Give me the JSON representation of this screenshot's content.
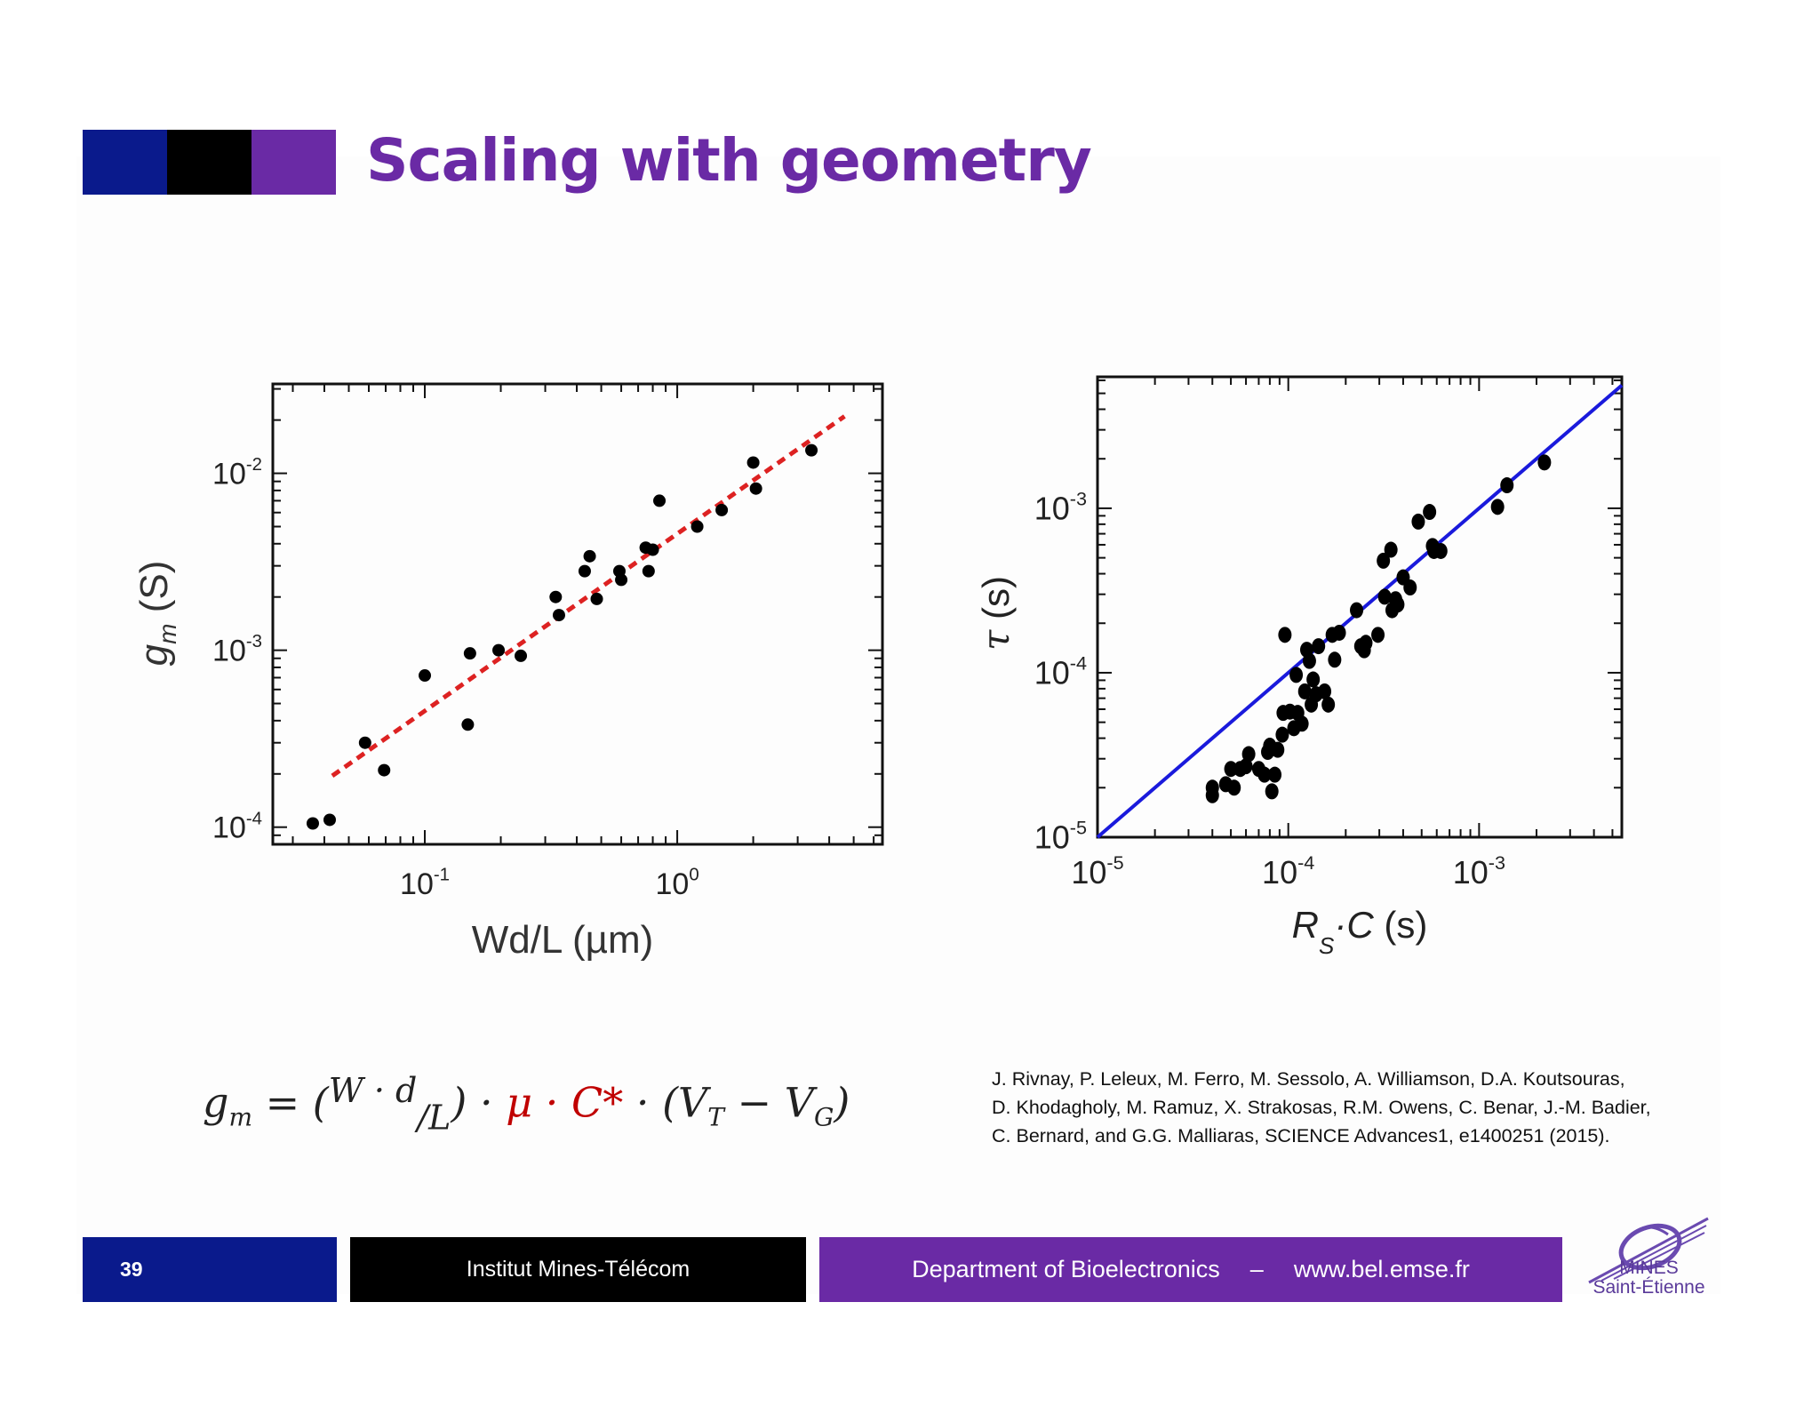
{
  "slide": {
    "title": "Scaling with geometry",
    "title_colors": [
      "#0a1a8c",
      "#000000",
      "#6a2aa5"
    ],
    "formula": {
      "lhs": "g",
      "lhs_sub": "m",
      "eq": " = (",
      "w_d": "W · d",
      "over_l": "/L",
      "close": ") · ",
      "mu_c": "μ · C*",
      "tail": " · (V",
      "tail_sub_t": "T",
      "minus": " − V",
      "tail_sub_g": "G",
      "end": ")"
    },
    "reference": "J. Rivnay, P. Leleux, M. Ferro, M. Sessolo, A. Williamson, D.A. Koutsouras,\nD. Khodagholy, M. Ramuz, X. Strakosas, R.M. Owens, C. Benar, J.-M. Badier,\nC. Bernard, and G.G. Malliaras, SCIENCE Advances1, e1400251 (2015).",
    "footer": {
      "page_number": "39",
      "institute": "Institut Mines-Télécom",
      "department": "Department of Bioelectronics",
      "dash": "–",
      "url": "www.bel.emse.fr",
      "colors": [
        "#0a1a8c",
        "#000000",
        "#6a2aa5"
      ]
    },
    "logo": {
      "icon": "mines-logo-icon",
      "line1": "MINES",
      "line2": "Saint-Étienne"
    }
  },
  "chart_data": [
    {
      "type": "scatter",
      "title": "",
      "xlabel": "Wd/L (µm)",
      "ylabel": "g_m (S)",
      "ylabel_main": "g",
      "ylabel_sub": "m",
      "ylabel_unit": "(S)",
      "xscale": "log",
      "yscale": "log",
      "xlim": [
        0.025,
        6.5
      ],
      "ylim": [
        8e-05,
        0.032
      ],
      "xticks": [
        {
          "exp": "-1",
          "v": 0.1
        },
        {
          "exp": "0",
          "v": 1
        }
      ],
      "yticks": [
        {
          "exp": "-4",
          "v": 0.0001
        },
        {
          "exp": "-3",
          "v": 0.001
        },
        {
          "exp": "-2",
          "v": 0.01
        }
      ],
      "tick_base": "10",
      "marker_color": "#000000",
      "points": [
        [
          0.036,
          0.000105
        ],
        [
          0.042,
          0.00011
        ],
        [
          0.058,
          0.0003
        ],
        [
          0.069,
          0.00021
        ],
        [
          0.1,
          0.00072
        ],
        [
          0.148,
          0.00038
        ],
        [
          0.151,
          0.00096
        ],
        [
          0.196,
          0.001
        ],
        [
          0.24,
          0.00093
        ],
        [
          0.33,
          0.002
        ],
        [
          0.34,
          0.00158
        ],
        [
          0.43,
          0.0028
        ],
        [
          0.45,
          0.0034
        ],
        [
          0.48,
          0.00195
        ],
        [
          0.59,
          0.0028
        ],
        [
          0.6,
          0.0025
        ],
        [
          0.75,
          0.0038
        ],
        [
          0.77,
          0.0028
        ],
        [
          0.8,
          0.0037
        ],
        [
          0.85,
          0.007
        ],
        [
          1.2,
          0.005
        ],
        [
          1.5,
          0.0062
        ],
        [
          2.0,
          0.0115
        ],
        [
          2.05,
          0.0082
        ],
        [
          3.4,
          0.0135
        ]
      ],
      "fit_line": {
        "x": [
          0.043,
          4.6
        ],
        "y": [
          0.000195,
          0.021
        ],
        "color": "#dd2222",
        "style": "dashed"
      }
    },
    {
      "type": "scatter",
      "title": "",
      "xlabel": "Rs·C (s)",
      "ylabel": "τ (s)",
      "xlabel_main": "R",
      "xlabel_sub": "S",
      "xlabel_rest": "·C",
      "xlabel_unit": "(s)",
      "ylabel_main": "τ",
      "ylabel_unit": "(s)",
      "xscale": "log",
      "yscale": "log",
      "xlim": [
        1e-05,
        0.0056
      ],
      "ylim": [
        1e-05,
        0.0063
      ],
      "xticks": [
        {
          "exp": "-5",
          "v": 1e-05
        },
        {
          "exp": "-4",
          "v": 0.0001
        },
        {
          "exp": "-3",
          "v": 0.001
        }
      ],
      "yticks": [
        {
          "exp": "-5",
          "v": 1e-05
        },
        {
          "exp": "-4",
          "v": 0.0001
        },
        {
          "exp": "-3",
          "v": 0.001
        }
      ],
      "tick_base": "10",
      "marker_color": "#000000",
      "points": [
        [
          4e-05,
          1.8e-05
        ],
        [
          4e-05,
          2e-05
        ],
        [
          4.7e-05,
          2.1e-05
        ],
        [
          5e-05,
          2.6e-05
        ],
        [
          5.2e-05,
          2e-05
        ],
        [
          5.6e-05,
          2.6e-05
        ],
        [
          6e-05,
          2.7e-05
        ],
        [
          6.2e-05,
          3.2e-05
        ],
        [
          7e-05,
          2.6e-05
        ],
        [
          7.5e-05,
          2.4e-05
        ],
        [
          7.8e-05,
          3.3e-05
        ],
        [
          8e-05,
          3.6e-05
        ],
        [
          8.2e-05,
          1.9e-05
        ],
        [
          8.5e-05,
          2.4e-05
        ],
        [
          8.8e-05,
          3.4e-05
        ],
        [
          9.3e-05,
          4.2e-05
        ],
        [
          9.4e-05,
          5.7e-05
        ],
        [
          9.6e-05,
          0.00017
        ],
        [
          0.000102,
          5.8e-05
        ],
        [
          0.000107,
          4.6e-05
        ],
        [
          0.00011,
          9.7e-05
        ],
        [
          0.000112,
          5.7e-05
        ],
        [
          0.000118,
          4.9e-05
        ],
        [
          0.000122,
          7.7e-05
        ],
        [
          0.000125,
          0.000138
        ],
        [
          0.000129,
          0.000118
        ],
        [
          0.000132,
          6.4e-05
        ],
        [
          0.000135,
          9.1e-05
        ],
        [
          0.00014,
          7.4e-05
        ],
        [
          0.000144,
          0.000145
        ],
        [
          0.000155,
          7.7e-05
        ],
        [
          0.000162,
          6.4e-05
        ],
        [
          0.00017,
          0.00017
        ],
        [
          0.000175,
          0.00012
        ],
        [
          0.000185,
          0.000175
        ],
        [
          0.000228,
          0.00024
        ],
        [
          0.00024,
          0.000145
        ],
        [
          0.00025,
          0.000137
        ],
        [
          0.000255,
          0.000152
        ],
        [
          0.000295,
          0.00017
        ],
        [
          0.000315,
          0.00048
        ],
        [
          0.00032,
          0.00029
        ],
        [
          0.000345,
          0.00056
        ],
        [
          0.00035,
          0.00024
        ],
        [
          0.000365,
          0.00028
        ],
        [
          0.000375,
          0.00026
        ],
        [
          0.0004,
          0.00038
        ],
        [
          0.000435,
          0.00033
        ],
        [
          0.00048,
          0.00083
        ],
        [
          0.00055,
          0.00095
        ],
        [
          0.00057,
          0.00059
        ],
        [
          0.00058,
          0.00055
        ],
        [
          0.00063,
          0.00055
        ],
        [
          0.00125,
          0.00102
        ],
        [
          0.0014,
          0.00138
        ],
        [
          0.0022,
          0.0019
        ]
      ],
      "fit_line": {
        "x": [
          1e-05,
          0.0056
        ],
        "y": [
          1e-05,
          0.0056
        ],
        "color": "#1a1adc",
        "style": "solid"
      }
    }
  ]
}
